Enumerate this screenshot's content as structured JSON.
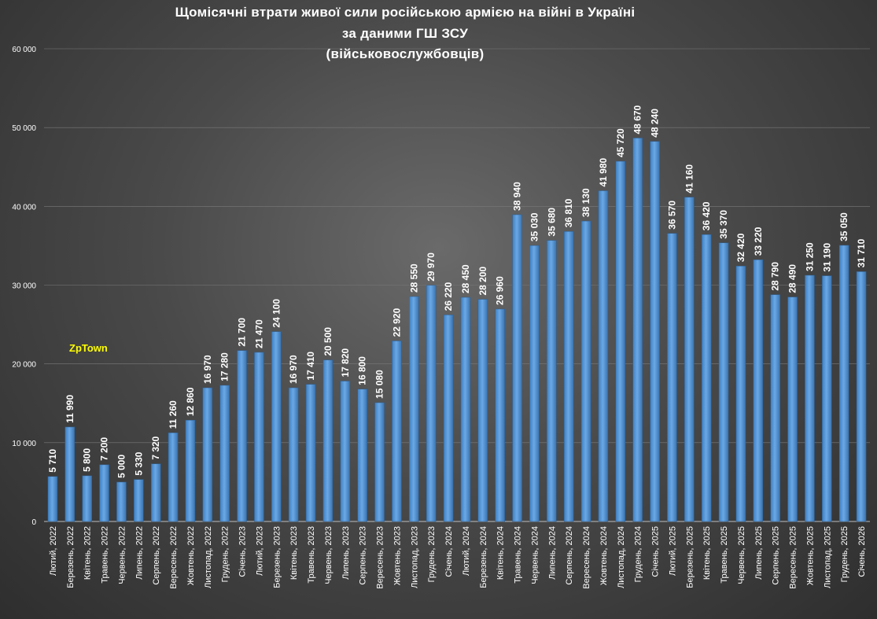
{
  "chart_data": {
    "type": "bar",
    "title_lines": [
      "Щомісячні  втрати живої сили російською  армією  на війні  в Україні",
      "за даними  ГШ ЗСУ",
      "(військовослужбовців)"
    ],
    "xlabel": "",
    "ylabel": "",
    "ylim": [
      0,
      60000
    ],
    "yticks": [
      0,
      10000,
      20000,
      30000,
      40000,
      50000,
      60000
    ],
    "ytick_labels": [
      "0",
      "10 000",
      "20 000",
      "30 000",
      "40 000",
      "50 000",
      "60 000"
    ],
    "grid": true,
    "legend": "none",
    "bar_color": "#5b9bd5",
    "categories": [
      "Лютий, 2022",
      "Березень, 2022",
      "Квітень, 2022",
      "Травень, 2022",
      "Червень, 2022",
      "Липень, 2022",
      "Серпень, 2022",
      "Вересень, 2022",
      "Жовтень, 2022",
      "Листопад, 2022",
      "Грудень, 2022",
      "Січень, 2023",
      "Лютий, 2023",
      "Березень, 2023",
      "Квітень, 2023",
      "Травень, 2023",
      "Червень, 2023",
      "Липень, 2023",
      "Серпень, 2023",
      "Вересень, 2023",
      "Жовтень, 2023",
      "Листопад, 2023",
      "Грудень, 2023",
      "Січень, 2024",
      "Лютий, 2024",
      "Березень, 2024",
      "Квітень, 2024",
      "Травень, 2024",
      "Червень, 2024",
      "Липень, 2024",
      "Серпень, 2024",
      "Вересень, 2024",
      "Жовтень, 2024",
      "Листопад, 2024",
      "Грудень, 2024",
      "Січень, 2025",
      "Лютий, 2025",
      "Березень, 2025",
      "Квітень, 2025",
      "Травень, 2025",
      "Червень, 2025",
      "Липень, 2025",
      "Серпень, 2025",
      "Вересень, 2025",
      "Жовтень, 2025",
      "Листопад, 2025",
      "Грудень, 2025",
      "Січень, 2026"
    ],
    "values": [
      5710,
      11990,
      5800,
      7200,
      5000,
      5330,
      7320,
      11260,
      12860,
      16970,
      17280,
      21700,
      21470,
      24100,
      16970,
      17410,
      20500,
      17820,
      16800,
      15080,
      22920,
      28550,
      29970,
      26220,
      28450,
      28200,
      26960,
      38940,
      35030,
      35680,
      36810,
      38130,
      41980,
      45720,
      48670,
      48240,
      36570,
      41160,
      36420,
      35370,
      32420,
      33220,
      28790,
      28490,
      31250,
      31190,
      35050,
      31710
    ],
    "value_labels": [
      "5 710",
      "11 990",
      "5 800",
      "7 200",
      "5 000",
      "5 330",
      "7 320",
      "11 260",
      "12 860",
      "16 970",
      "17 280",
      "21 700",
      "21 470",
      "24 100",
      "16 970",
      "17 410",
      "20 500",
      "17 820",
      "16 800",
      "15 080",
      "22 920",
      "28 550",
      "29 970",
      "26 220",
      "28 450",
      "28 200",
      "26 960",
      "38 940",
      "35 030",
      "35 680",
      "36 810",
      "38 130",
      "41 980",
      "45 720",
      "48 670",
      "48 240",
      "36 570",
      "41 160",
      "36 420",
      "35 370",
      "32 420",
      "33 220",
      "28 790",
      "28 490",
      "31 250",
      "31 190",
      "35 050",
      "31 710"
    ]
  },
  "watermark": "ZpTown"
}
